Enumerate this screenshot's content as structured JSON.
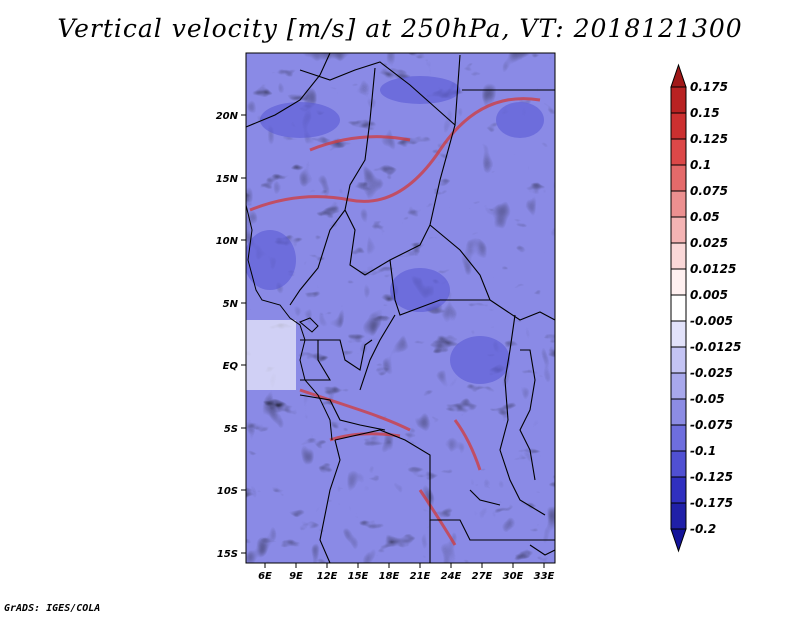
{
  "title": "Vertical velocity [m/s] at 250hPa, VT: 2018121300",
  "footer": "GrADS: IGES/COLA",
  "map": {
    "lat_ticks": [
      "20N",
      "15N",
      "10N",
      "5N",
      "EQ",
      "5S",
      "10S",
      "15S"
    ],
    "lon_ticks": [
      "6E",
      "9E",
      "12E",
      "15E",
      "18E",
      "21E",
      "24E",
      "27E",
      "30E",
      "33E"
    ]
  },
  "colorbar": {
    "labels": [
      "0.175",
      "0.15",
      "0.125",
      "0.1",
      "0.075",
      "0.05",
      "0.025",
      "0.0125",
      "0.005",
      "-0.005",
      "-0.0125",
      "-0.025",
      "-0.05",
      "-0.075",
      "-0.1",
      "-0.125",
      "-0.175",
      "-0.2"
    ],
    "colors": [
      "#a01818",
      "#b82222",
      "#cc3030",
      "#dc4848",
      "#e46a6a",
      "#ec9090",
      "#f4b4b4",
      "#fad8d8",
      "#fff0f0",
      "#ffffff",
      "#e2e2fa",
      "#c4c4f4",
      "#a8a8ec",
      "#8c8ce4",
      "#6e6ede",
      "#5050d2",
      "#3030c0",
      "#2020a8",
      "#14149a"
    ]
  }
}
